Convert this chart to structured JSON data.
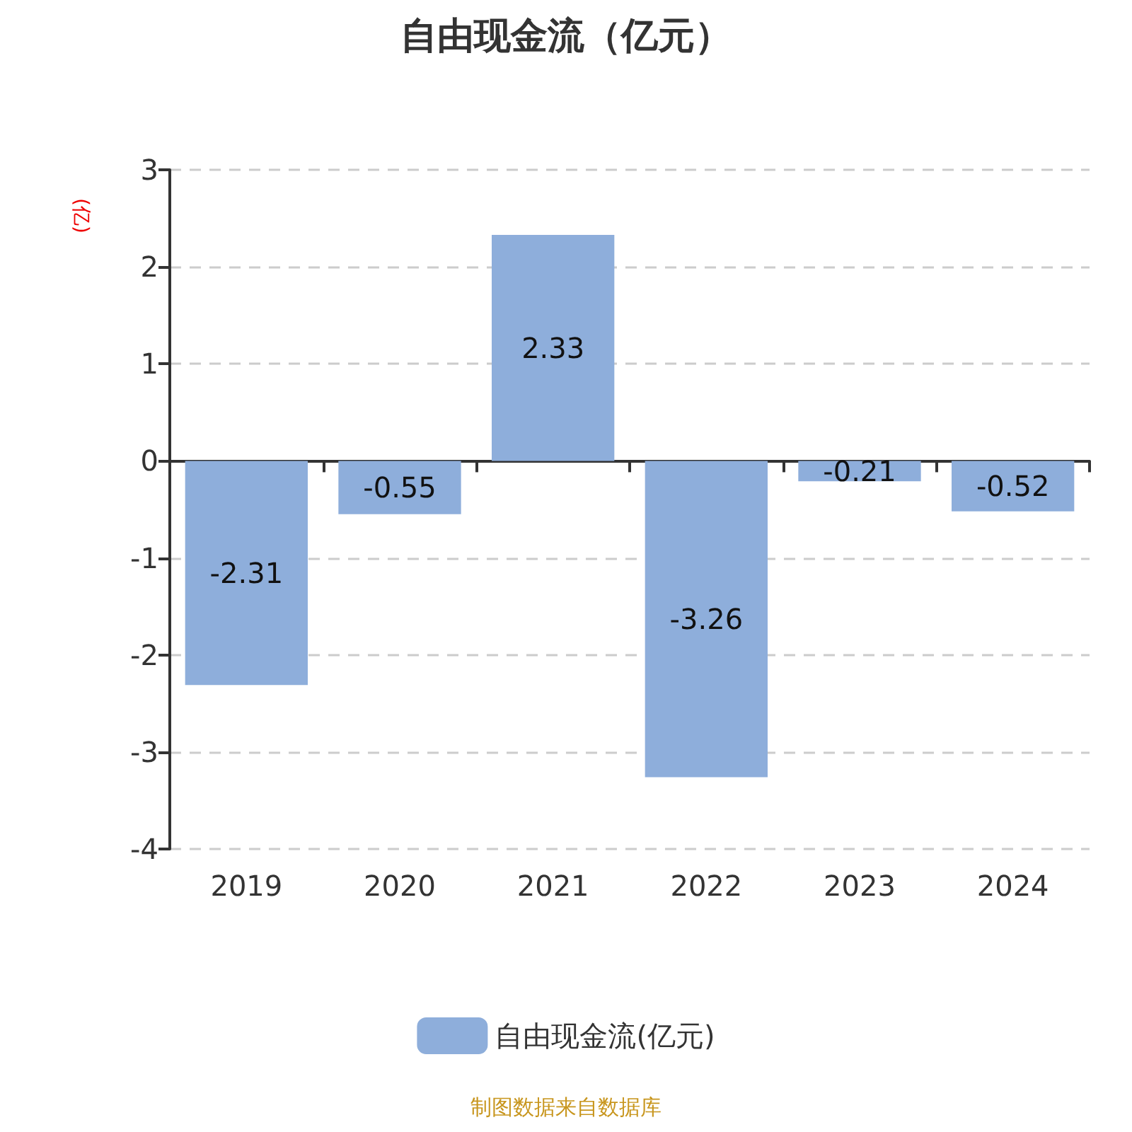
{
  "chart_data": {
    "type": "bar",
    "title": "自由现金流（亿元）",
    "ylabel": "(亿)",
    "categories": [
      "2019",
      "2020",
      "2021",
      "2022",
      "2023",
      "2024"
    ],
    "series": [
      {
        "name": "自由现金流(亿元)",
        "color": "#8eaedb",
        "values": [
          -2.31,
          -0.55,
          2.33,
          -3.26,
          -0.21,
          -0.52
        ]
      }
    ],
    "ylim": [
      -4,
      3
    ],
    "yticks": [
      -4,
      -3,
      -2,
      -1,
      0,
      1,
      2,
      3
    ],
    "grid": "y",
    "legend": "bottom",
    "data_labels": true,
    "annotations": [
      "制图数据来自数据库"
    ]
  }
}
